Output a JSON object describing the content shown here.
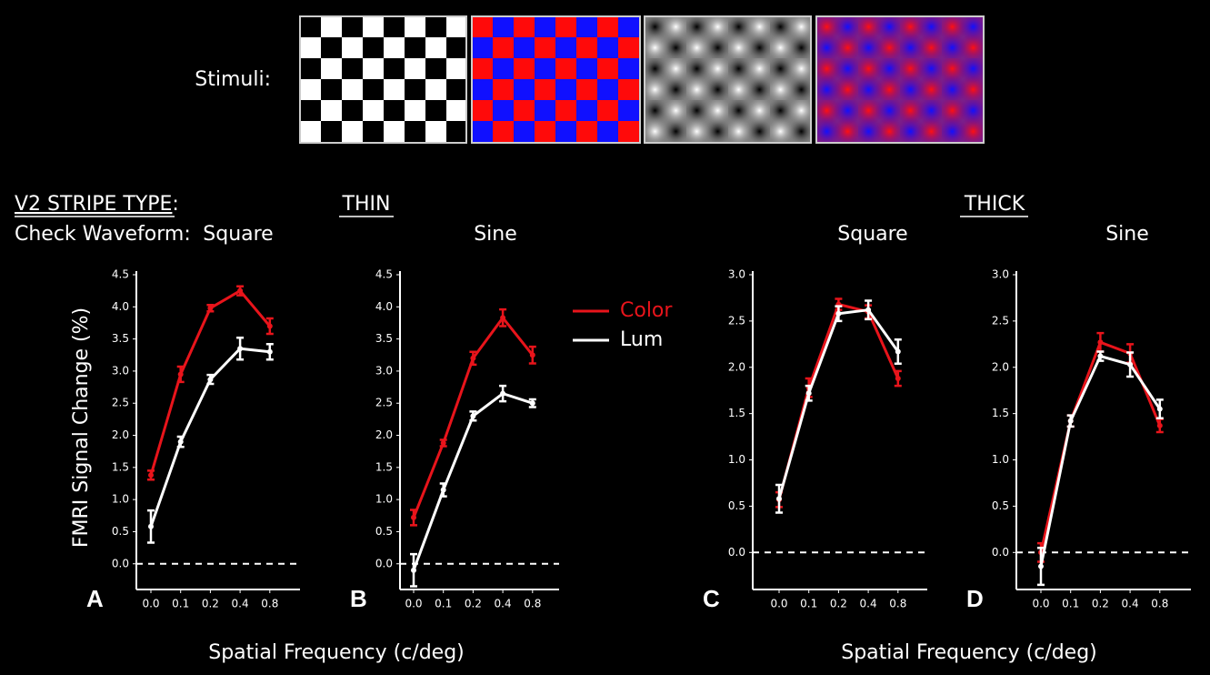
{
  "figure": {
    "stimuli_label": "Stimuli:",
    "stripe_type_label": "V2  STRIPE  TYPE",
    "stripe_type_colon": ":",
    "waveform_label": "Check Waveform:",
    "groups": [
      "THIN",
      "THICK"
    ],
    "y_label": "FMRI Signal Change (%)",
    "x_labels": [
      "Spatial Frequency (c/deg)",
      "Spatial Frequency (c/deg)"
    ]
  },
  "chart_data": [
    {
      "type": "line",
      "panel": "A",
      "subtitle": "Square",
      "categories": [
        "0.0",
        "0.1",
        "0.2",
        "0.4",
        "0.8"
      ],
      "series": [
        {
          "name": "Color",
          "color": "#e8141b",
          "values": [
            1.38,
            2.95,
            3.98,
            4.25,
            3.7
          ],
          "errors": [
            0.07,
            0.12,
            0.05,
            0.07,
            0.12
          ]
        },
        {
          "name": "Lum",
          "color": "#ffffff",
          "values": [
            0.58,
            1.9,
            2.87,
            3.35,
            3.3
          ],
          "errors": [
            0.25,
            0.08,
            0.07,
            0.17,
            0.12
          ]
        }
      ],
      "ylim": [
        -0.4,
        4.5
      ],
      "yticks": [
        {
          "value": 0,
          "label": "0.0"
        },
        0.5,
        {
          "value": 1,
          "label": "1.0"
        },
        1.5,
        {
          "value": 2,
          "label": "2.0"
        },
        2.5,
        {
          "value": 3,
          "label": "3.0"
        },
        3.5,
        {
          "value": 4,
          "label": "4.0"
        },
        4.5
      ],
      "legend": false
    },
    {
      "type": "line",
      "panel": "B",
      "subtitle": "Sine",
      "categories": [
        "0.0",
        "0.1",
        "0.2",
        "0.4",
        "0.8"
      ],
      "series": [
        {
          "name": "Color",
          "color": "#e8141b",
          "values": [
            0.72,
            1.88,
            3.2,
            3.83,
            3.25
          ],
          "errors": [
            0.12,
            0.05,
            0.1,
            0.13,
            0.13
          ]
        },
        {
          "name": "Lum",
          "color": "#ffffff",
          "values": [
            -0.1,
            1.15,
            2.3,
            2.65,
            2.5
          ],
          "errors": [
            0.25,
            0.1,
            0.07,
            0.12,
            0.06
          ]
        }
      ],
      "ylim": [
        -0.4,
        4.5
      ],
      "yticks": [
        {
          "value": 0,
          "label": "0.0"
        },
        0.5,
        {
          "value": 1,
          "label": "1.0"
        },
        1.5,
        {
          "value": 2,
          "label": "2.0"
        },
        2.5,
        {
          "value": 3,
          "label": "3.0"
        },
        3.5,
        {
          "value": 4,
          "label": "4.0"
        },
        4.5
      ],
      "legend": true
    },
    {
      "type": "line",
      "panel": "C",
      "subtitle": "Square",
      "categories": [
        "0.0",
        "0.1",
        "0.2",
        "0.4",
        "0.8"
      ],
      "series": [
        {
          "name": "Color",
          "color": "#e8141b",
          "values": [
            0.57,
            1.78,
            2.68,
            2.6,
            1.88
          ],
          "errors": [
            0.08,
            0.1,
            0.06,
            0.07,
            0.08
          ]
        },
        {
          "name": "Lum",
          "color": "#ffffff",
          "values": [
            0.58,
            1.72,
            2.58,
            2.62,
            2.17
          ],
          "errors": [
            0.15,
            0.08,
            0.08,
            0.1,
            0.13
          ]
        }
      ],
      "ylim": [
        -0.4,
        3.0
      ],
      "yticks": [
        {
          "value": 0,
          "label": "0.0"
        },
        0.5,
        {
          "value": 1,
          "label": "1.0"
        },
        1.5,
        {
          "value": 2,
          "label": "2.0"
        },
        2.5,
        {
          "value": 3,
          "label": "3.0"
        }
      ],
      "legend": false
    },
    {
      "type": "line",
      "panel": "D",
      "subtitle": "Sine",
      "categories": [
        "0.0",
        "0.1",
        "0.2",
        "0.4",
        "0.8"
      ],
      "series": [
        {
          "name": "Color",
          "color": "#e8141b",
          "values": [
            0.0,
            1.42,
            2.27,
            2.15,
            1.37
          ],
          "errors": [
            0.1,
            0.06,
            0.1,
            0.1,
            0.07
          ]
        },
        {
          "name": "Lum",
          "color": "#ffffff",
          "values": [
            -0.15,
            1.42,
            2.12,
            2.03,
            1.55
          ],
          "errors": [
            0.2,
            0.06,
            0.05,
            0.13,
            0.1
          ]
        }
      ],
      "ylim": [
        -0.4,
        3.0
      ],
      "yticks": [
        {
          "value": 0,
          "label": "0.0"
        },
        0.5,
        {
          "value": 1,
          "label": "1.0"
        },
        1.5,
        {
          "value": 2,
          "label": "2.0"
        },
        2.5,
        {
          "value": 3,
          "label": "3.0"
        }
      ],
      "legend": false
    }
  ]
}
